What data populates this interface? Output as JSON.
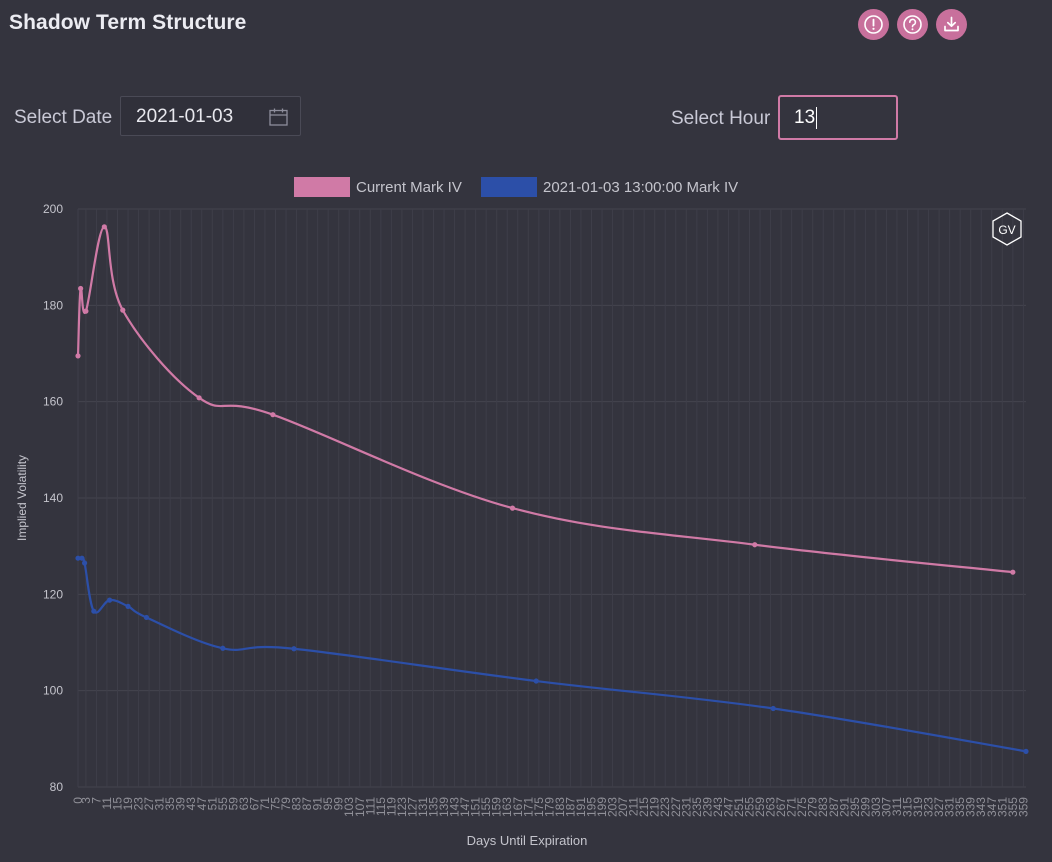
{
  "header": {
    "title": "Shadow Term Structure",
    "buttons": [
      {
        "icon": "alert-circle-icon"
      },
      {
        "icon": "help-circle-icon"
      },
      {
        "icon": "download-icon"
      }
    ],
    "accent_color": "#c8709c"
  },
  "controls": {
    "date_label": "Select Date",
    "date_value": "2021-01-03",
    "hour_label": "Select Hour",
    "hour_value": "13"
  },
  "watermark": "GV",
  "chart_data": {
    "type": "line",
    "title": "",
    "xlabel": "Days Until Expiration",
    "ylabel": "Implied Volatility",
    "xlim": [
      0,
      360
    ],
    "ylim": [
      80,
      200
    ],
    "yticks": [
      80,
      100,
      120,
      140,
      160,
      180,
      200
    ],
    "xticks": [
      0,
      3,
      7,
      11,
      15,
      19,
      23,
      27,
      31,
      35,
      39,
      43,
      47,
      51,
      55,
      59,
      63,
      67,
      71,
      75,
      79,
      83,
      87,
      91,
      95,
      99,
      103,
      107,
      111,
      115,
      119,
      123,
      127,
      131,
      135,
      139,
      143,
      147,
      151,
      155,
      159,
      163,
      167,
      171,
      175,
      179,
      183,
      187,
      191,
      195,
      199,
      203,
      207,
      211,
      215,
      219,
      223,
      227,
      231,
      235,
      239,
      243,
      247,
      251,
      255,
      259,
      263,
      267,
      271,
      275,
      279,
      283,
      287,
      291,
      295,
      299,
      303,
      307,
      311,
      315,
      319,
      323,
      327,
      331,
      335,
      339,
      343,
      347,
      351,
      355,
      359
    ],
    "grid": true,
    "legend_position": "top",
    "series": [
      {
        "name": "Current Mark IV",
        "color": "#d07aa6",
        "points": [
          [
            0,
            169.5
          ],
          [
            1,
            183.5
          ],
          [
            3,
            178.8
          ],
          [
            10,
            196.3
          ],
          [
            17,
            179
          ],
          [
            46,
            160.8
          ],
          [
            74,
            157.3
          ],
          [
            165,
            137.9
          ],
          [
            257,
            130.3
          ],
          [
            355,
            124.6
          ]
        ]
      },
      {
        "name": "2021-01-03 13:00:00 Mark IV",
        "color": "#2c4fa8",
        "points": [
          [
            0,
            127.5
          ],
          [
            1.5,
            127.5
          ],
          [
            2.5,
            126.5
          ],
          [
            6,
            116.5
          ],
          [
            12,
            118.8
          ],
          [
            19,
            117.5
          ],
          [
            26,
            115.2
          ],
          [
            55,
            108.8
          ],
          [
            82,
            108.7
          ],
          [
            174,
            102
          ],
          [
            264,
            96.3
          ],
          [
            360,
            87.4
          ]
        ]
      }
    ]
  }
}
